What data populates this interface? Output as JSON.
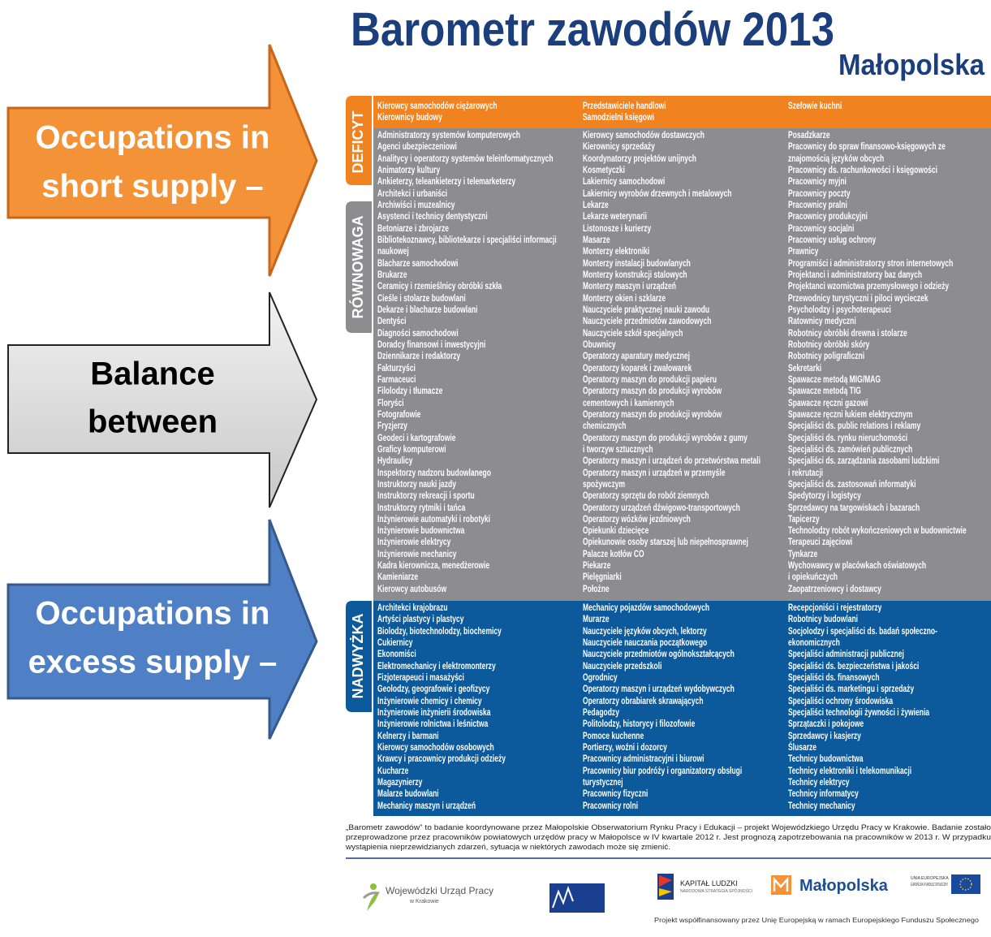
{
  "header": {
    "title": "Barometr zawodów 2013",
    "region": "Małopolska"
  },
  "arrows": [
    {
      "lines": [
        "Occupations in",
        "short supply –"
      ]
    },
    {
      "lines": [
        "Balance",
        "between"
      ]
    },
    {
      "lines": [
        "Occupations in",
        "excess supply –"
      ]
    }
  ],
  "sections": [
    {
      "label": "DEFICYT",
      "columns": [
        [
          "Kierowcy samochodów ciężarowych",
          "Kierownicy budowy"
        ],
        [
          "Przedstawiciele handlowi",
          "Samodzielni księgowi"
        ],
        [
          "Szefowie kuchni"
        ]
      ]
    },
    {
      "label": "RÓWNOWAGA",
      "columns": [
        [
          "Administratorzy systemów komputerowych",
          "Agenci ubezpieczeniowi",
          "Analitycy i operatorzy systemów teleinformatycznych",
          "Animatorzy kultury",
          "Ankieterzy, teleankieterzy i telemarketerzy",
          "Architekci i urbaniści",
          "Archiwiści i muzealnicy",
          "Asystenci i technicy dentystyczni",
          "Betoniarze i zbrojarze",
          "Bibliotekoznawcy, bibliotekarze i specjaliści informacji",
          "naukowej",
          "Blacharze samochodowi",
          "Brukarze",
          "Ceramicy i rzemieślnicy obróbki szkła",
          "Cieśle i stolarze budowlani",
          "Dekarze i blacharze budowlani",
          "Dentyści",
          "Diagności samochodowi",
          "Doradcy finansowi i inwestycyjni",
          "Dziennikarze i redaktorzy",
          "Fakturzyści",
          "Farmaceuci",
          "Filolodzy i tłumacze",
          "Floryści",
          "Fotografowie",
          "Fryzjerzy",
          "Geodeci i kartografowie",
          "Graficy komputerowi",
          "Hydraulicy",
          "Inspektorzy nadzoru budowlanego",
          "Instruktorzy nauki jazdy",
          "Instruktorzy rekreacji i sportu",
          "Instruktorzy rytmiki i tańca",
          "Inżynierowie automatyki i robotyki",
          "Inżynierowie budownictwa",
          "Inżynierowie elektrycy",
          "Inżynierowie mechanicy",
          "Kadra kierownicza, menedżerowie",
          "Kamieniarze",
          "Kierowcy autobusów"
        ],
        [
          "Kierowcy samochodów dostawczych",
          "Kierownicy sprzedaży",
          "Koordynatorzy projektów unijnych",
          "Kosmetyczki",
          "Lakiernicy samochodowi",
          "Lakiernicy wyrobów drzewnych i metalowych",
          "Lekarze",
          "Lekarze weterynarii",
          "Listonosze i kurierzy",
          "Masarze",
          "Monterzy elektroniki",
          "Monterzy instalacji budowlanych",
          "Monterzy konstrukcji stalowych",
          "Monterzy maszyn i urządzeń",
          "Monterzy okien i szklarze",
          "Nauczyciele praktycznej nauki zawodu",
          "Nauczyciele przedmiotów zawodowych",
          "Nauczyciele szkół specjalnych",
          "Obuwnicy",
          "Operatorzy aparatury medycznej",
          "Operatorzy koparek i zwałowarek",
          "Operatorzy maszyn do produkcji papieru",
          "Operatorzy maszyn do produkcji wyrobów",
          "cementowych i kamiennych",
          "Operatorzy maszyn do produkcji wyrobów",
          "chemicznych",
          "Operatorzy maszyn do produkcji wyrobów z gumy",
          "i tworzyw sztucznych",
          "Operatorzy maszyn i urządzeń do przetwórstwa metali",
          "Operatorzy maszyn i urządzeń w przemyśle",
          "spożywczym",
          "Operatorzy sprzętu do robót ziemnych",
          "Operatorzy urządzeń dźwigowo-transportowych",
          "Operatorzy wózków jezdniowych",
          "Opiekunki dziecięce",
          "Opiekunowie osoby starszej lub niepełnosprawnej",
          "Palacze kotłów CO",
          "Piekarze",
          "Pielęgniarki",
          "Położne"
        ],
        [
          "Posadzkarze",
          "Pracownicy do spraw finansowo-księgowych ze",
          "znajomością języków obcych",
          "Pracownicy ds. rachunkowości i księgowości",
          "Pracownicy myjni",
          "Pracownicy poczty",
          "Pracownicy pralni",
          "Pracownicy produkcyjni",
          "Pracownicy socjalni",
          "Pracownicy usług ochrony",
          "Prawnicy",
          "Programiści i administratorzy stron internetowych",
          "Projektanci i administratorzy baz danych",
          "Projektanci wzornictwa przemysłowego i odzieży",
          "Przewodnicy turystyczni i piloci wycieczek",
          "Psycholodzy i psychoterapeuci",
          "Ratownicy medyczni",
          "Robotnicy obróbki drewna i stolarze",
          "Robotnicy obróbki skóry",
          "Robotnicy poligraficzni",
          "Sekretarki",
          "Spawacze metodą MIG/MAG",
          "Spawacze metodą TIG",
          "Spawacze ręczni gazowi",
          "Spawacze ręczni łukiem elektrycznym",
          "Specjaliści ds. public relations i reklamy",
          "Specjaliści ds. rynku nieruchomości",
          "Specjaliści ds. zamówień publicznych",
          "Specjaliści ds. zarządzania zasobami ludzkimi",
          "i rekrutacji",
          "Specjaliści ds. zastosowań informatyki",
          "Spedytorzy i logistycy",
          "Sprzedawcy na targowiskach i bazarach",
          "Tapicerzy",
          "Technolodzy robót wykończeniowych w budownictwie",
          "Terapeuci zajęciowi",
          "Tynkarze",
          "Wychowawcy w placówkach oświatowych",
          "i opiekuńczych",
          "Zaopatrzeniowcy i dostawcy"
        ]
      ]
    },
    {
      "label": "NADWYŻKA",
      "columns": [
        [
          "Architekci krajobrazu",
          "Artyści plastycy i plastycy",
          "Biolodzy, biotechnolodzy, biochemicy",
          "Cukiernicy",
          "Ekonomiści",
          "Elektromechanicy i elektromonterzy",
          "Fizjoterapeuci i masażyści",
          "Geolodzy, geografowie i geofizycy",
          "Inżynierowie chemicy i chemicy",
          "Inżynierowie inżynierii środowiska",
          "Inżynierowie rolnictwa i leśnictwa",
          "Kelnerzy i barmani",
          "Kierowcy samochodów osobowych",
          "Krawcy i pracownicy produkcji odzieży",
          "Kucharze",
          "Magazynierzy",
          "Malarze budowlani",
          "Mechanicy maszyn i urządzeń"
        ],
        [
          "Mechanicy pojazdów samochodowych",
          "Murarze",
          "Nauczyciele języków obcych, lektorzy",
          "Nauczyciele nauczania początkowego",
          "Nauczyciele przedmiotów ogólnokształcących",
          "Nauczyciele przedszkoli",
          "Ogrodnicy",
          "Operatorzy maszyn i urządzeń wydobywczych",
          "Operatorzy obrabiarek skrawających",
          "Pedagodzy",
          "Politolodzy, historycy i filozofowie",
          "Pomoce kuchenne",
          "Portierzy, woźni i dozorcy",
          "Pracownicy administracyjni i biurowi",
          "Pracownicy biur podróży i organizatorzy obsługi",
          "turystycznej",
          "Pracownicy fizyczni",
          "Pracownicy rolni"
        ],
        [
          "Recepcjoniści i rejestratorzy",
          "Robotnicy budowlani",
          "Socjolodzy i specjaliści ds. badań społeczno-",
          "ekonomicznych",
          "Specjaliści administracji publicznej",
          "Specjaliści ds. bezpieczeństwa i jakości",
          "Specjaliści ds. finansowych",
          "Specjaliści ds. marketingu i sprzedaży",
          "Specjaliści ochrony środowiska",
          "Specjaliści technologii żywności i żywienia",
          "Sprzątaczki i pokojowe",
          "Sprzedawcy i kasjerzy",
          "Ślusarze",
          "Technicy budownictwa",
          "Technicy elektroniki i telekomunikacji",
          "Technicy elektrycy",
          "Technicy informatycy",
          "Technicy mechanicy"
        ]
      ]
    }
  ],
  "footnote": [
    "„Barometr zawodów” to badanie koordynowane przez Małopolskie Obserwatorium Rynku Pracy i Edukacji – projekt Wojewódzkiego Urzędu Pracy w Krakowie. Badanie zostało",
    "przeprowadzone przez pracowników powiatowych urzędów pracy w Małopolsce w IV kwartale 2012 r. Jest prognozą zapotrzebowania na pracowników w 2013 r. W przypadku",
    "wystąpienia nieprzewidzianych zdarzeń, sytuacja w niektórych zawodach może się zmienić."
  ],
  "logos": {
    "wup": "Wojewódzki Urząd Pracy",
    "wup_sub": "w Krakowie",
    "kapital": "KAPITAŁ LUDZKI",
    "kapital_sub": "NARODOWA STRATEGIA SPÓJNOŚCI",
    "malopolska": "Małopolska",
    "eu_1": "UNIA EUROPEJSKA",
    "eu_2": "EUROPEJSKI FUNDUSZ SPOŁECZNY"
  },
  "funding": "Projekt współfinansowany przez Unię Europejską w ramach Europejskiego Funduszu Społecznego"
}
